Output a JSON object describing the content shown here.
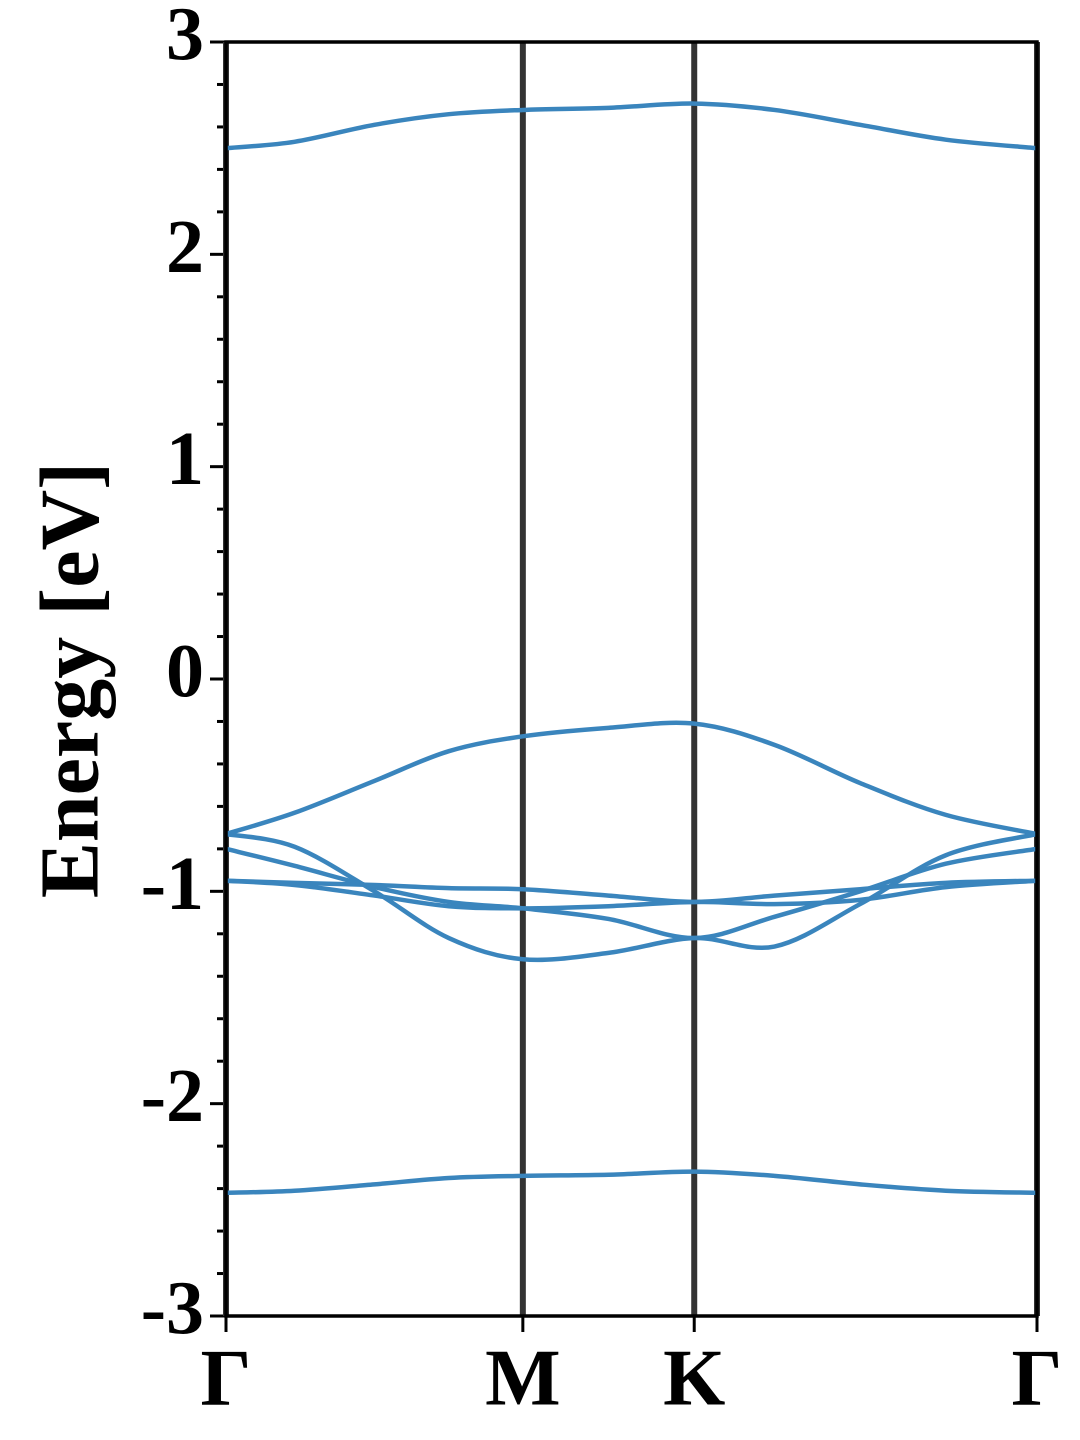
{
  "chart_data": {
    "type": "line",
    "ylabel": "Energy [eV]",
    "x": [
      0,
      0.2,
      0.433,
      0.65,
      0.866,
      1.116,
      1.366,
      1.6,
      1.85,
      2.1,
      2.366
    ],
    "xlim": [
      0,
      2.366
    ],
    "xticks": [
      {
        "value": 0,
        "label": "Γ"
      },
      {
        "value": 0.866,
        "label": "M"
      },
      {
        "value": 1.366,
        "label": "K"
      },
      {
        "value": 2.366,
        "label": "Γ"
      }
    ],
    "ylim": [
      -3,
      3
    ],
    "yticks": [
      -3,
      -2,
      -1,
      0,
      1,
      2,
      3
    ],
    "color": "#3a85bd",
    "series": [
      {
        "values": [
          2.5,
          2.53,
          2.61,
          2.66,
          2.68,
          2.69,
          2.71,
          2.68,
          2.61,
          2.54,
          2.5
        ]
      },
      {
        "values": [
          -0.73,
          -0.63,
          -0.48,
          -0.34,
          -0.27,
          -0.23,
          -0.21,
          -0.31,
          -0.49,
          -0.64,
          -0.73
        ]
      },
      {
        "values": [
          -0.73,
          -0.79,
          -1.0,
          -1.22,
          -1.32,
          -1.29,
          -1.22,
          -1.26,
          -1.06,
          -0.83,
          -0.73
        ]
      },
      {
        "values": [
          -0.8,
          -0.88,
          -0.98,
          -1.05,
          -1.08,
          -1.13,
          -1.22,
          -1.12,
          -1.0,
          -0.87,
          -0.8
        ]
      },
      {
        "values": [
          -0.95,
          -0.96,
          -0.97,
          -0.985,
          -0.99,
          -1.02,
          -1.05,
          -1.02,
          -0.99,
          -0.96,
          -0.95
        ]
      },
      {
        "values": [
          -0.95,
          -0.97,
          -1.02,
          -1.07,
          -1.08,
          -1.07,
          -1.05,
          -1.06,
          -1.04,
          -0.98,
          -0.95
        ]
      },
      {
        "values": [
          -2.42,
          -2.41,
          -2.38,
          -2.35,
          -2.34,
          -2.335,
          -2.32,
          -2.34,
          -2.38,
          -2.41,
          -2.42
        ]
      }
    ]
  }
}
